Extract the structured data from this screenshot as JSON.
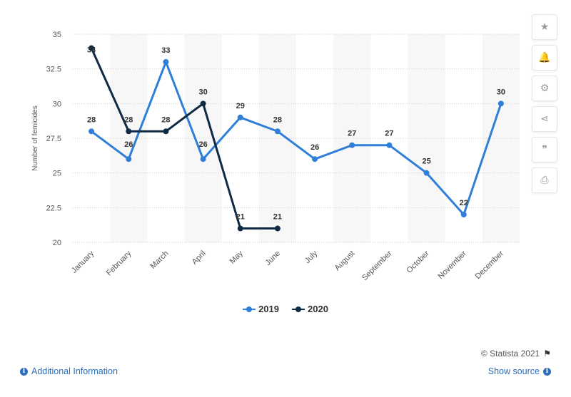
{
  "sidebar": {
    "buttons": [
      {
        "name": "star-icon",
        "glyph": "★"
      },
      {
        "name": "bell-icon",
        "glyph": "🔔"
      },
      {
        "name": "gear-icon",
        "glyph": "⚙"
      },
      {
        "name": "share-icon",
        "glyph": "⋖"
      },
      {
        "name": "quote-icon",
        "glyph": "❞"
      },
      {
        "name": "print-icon",
        "glyph": "⎙"
      }
    ]
  },
  "footer": {
    "credit": "© Statista 2021",
    "additional_info": "Additional Information",
    "show_source": "Show source"
  },
  "chart_data": {
    "type": "line",
    "ylabel": "Number of femicides",
    "xlabel": "",
    "ylim": [
      20,
      35
    ],
    "yticks": [
      "20",
      "22.5",
      "25",
      "27.5",
      "30",
      "32.5",
      "35"
    ],
    "categories": [
      "January",
      "February",
      "March",
      "April",
      "May",
      "June",
      "July",
      "August",
      "September",
      "October",
      "November",
      "December"
    ],
    "series": [
      {
        "name": "2019",
        "color": "#2f7ed8",
        "values": [
          28,
          26,
          33,
          26,
          29,
          28,
          26,
          27,
          27,
          25,
          22,
          30
        ]
      },
      {
        "name": "2020",
        "color": "#0f2a44",
        "values": [
          34,
          28,
          28,
          30,
          21,
          21,
          null,
          null,
          null,
          null,
          null,
          null
        ]
      }
    ],
    "grid": true,
    "legend_position": "bottom-center"
  }
}
